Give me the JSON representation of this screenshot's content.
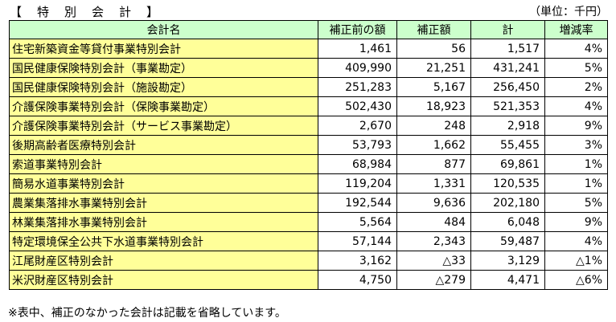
{
  "title": "【　特　別　会　計　】",
  "unit": "（単位：千円）",
  "headers": [
    "会計名",
    "補正前の額",
    "補正額",
    "計",
    "増減率"
  ],
  "rows": [
    {
      "name": "住宅新築資金等貸付事業特別会計",
      "before": "1,461",
      "amount": "56",
      "total": "1,517",
      "rate": "4%"
    },
    {
      "name": "国民健康保険特別会計（事業勘定）",
      "before": "409,990",
      "amount": "21,251",
      "total": "431,241",
      "rate": "5%"
    },
    {
      "name": "国民健康保険特別会計（施設勘定）",
      "before": "251,283",
      "amount": "5,167",
      "total": "256,450",
      "rate": "2%"
    },
    {
      "name": "介護保険事業特別会計（保険事業勘定）",
      "before": "502,430",
      "amount": "18,923",
      "total": "521,353",
      "rate": "4%"
    },
    {
      "name": "介護保険事業特別会計（サービス事業勘定）",
      "before": "2,670",
      "amount": "248",
      "total": "2,918",
      "rate": "9%"
    },
    {
      "name": "後期高齢者医療特別会計",
      "before": "53,793",
      "amount": "1,662",
      "total": "55,455",
      "rate": "3%"
    },
    {
      "name": "索道事業特別会計",
      "before": "68,984",
      "amount": "877",
      "total": "69,861",
      "rate": "1%"
    },
    {
      "name": "簡易水道事業特別会計",
      "before": "119,204",
      "amount": "1,331",
      "total": "120,535",
      "rate": "1%"
    },
    {
      "name": "農業集落排水事業特別会計",
      "before": "192,544",
      "amount": "9,636",
      "total": "202,180",
      "rate": "5%"
    },
    {
      "name": "林業集落排水事業特別会計",
      "before": "5,564",
      "amount": "484",
      "total": "6,048",
      "rate": "9%"
    },
    {
      "name": "特定環境保全公共下水道事業特別会計",
      "before": "57,144",
      "amount": "2,343",
      "total": "59,487",
      "rate": "4%"
    },
    {
      "name": "江尾財産区特別会計",
      "before": "3,162",
      "amount": "△33",
      "total": "3,129",
      "rate": "△1%"
    },
    {
      "name": "米沢財産区特別会計",
      "before": "4,750",
      "amount": "△279",
      "total": "4,471",
      "rate": "△6%"
    }
  ],
  "note": "※表中、補正のなかった会計は記載を省略しています。",
  "colors": {
    "header_bg": "#ccffcc",
    "name_bg": "#ffff99"
  }
}
